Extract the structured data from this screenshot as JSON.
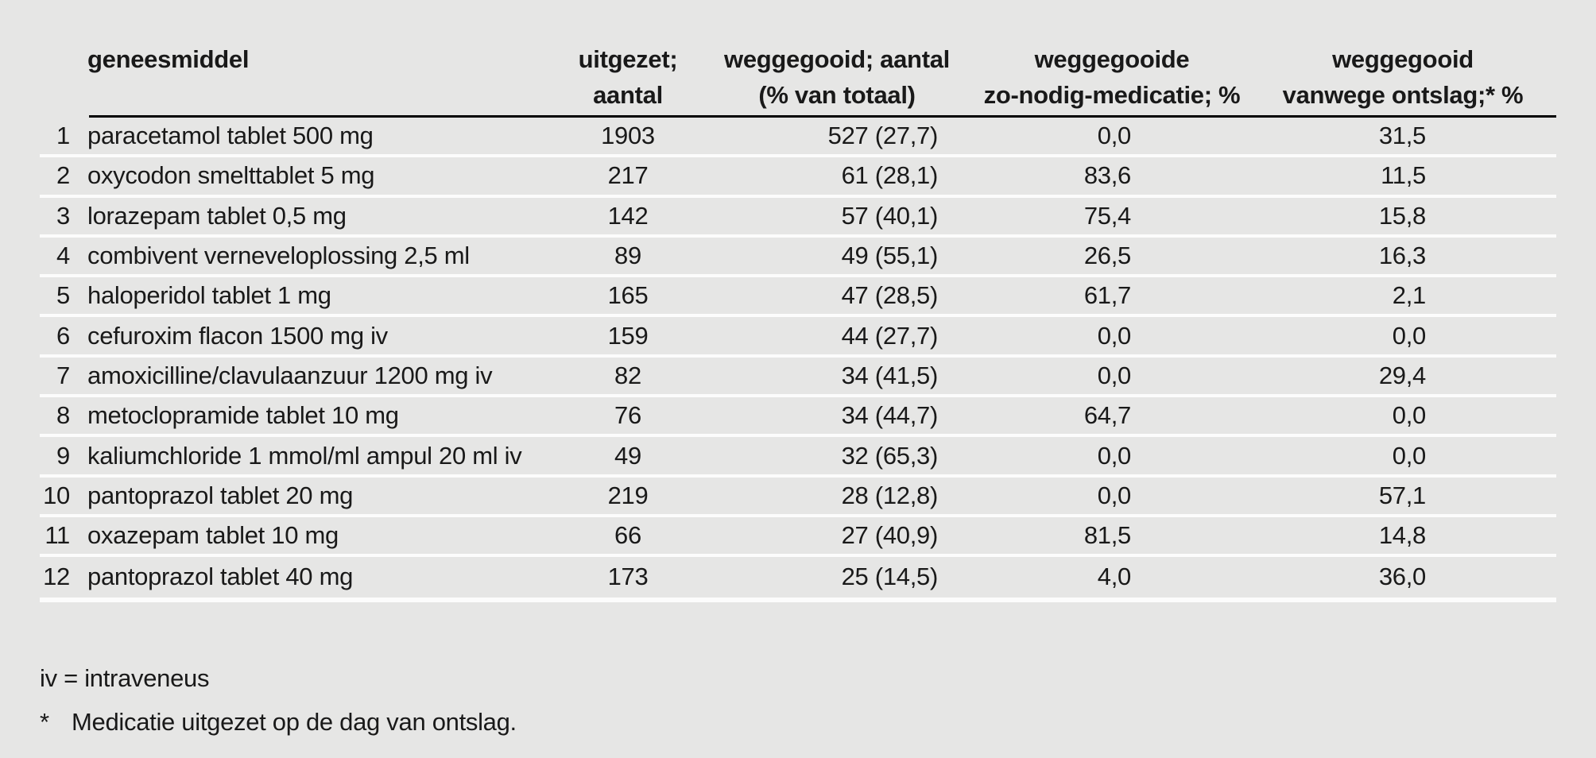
{
  "table": {
    "headers": {
      "geneesmiddel": "geneesmiddel",
      "uitgezet": [
        "uitgezet;",
        "aantal"
      ],
      "weggegooid": [
        "weggegooid; aantal",
        "(% van totaal)"
      ],
      "zonodig": [
        "weggegooide",
        "zo-nodig-medicatie; %"
      ],
      "ontslag": [
        "weggegooid",
        "vanwege ontslag;* %"
      ]
    },
    "rows": [
      {
        "num": "1",
        "name": "paracetamol tablet 500 mg",
        "uitgezet": "1903",
        "weggegooid": "527 (27,7)",
        "zonodig": "0,0",
        "ontslag": "31,5"
      },
      {
        "num": "2",
        "name": "oxycodon smelttablet 5 mg",
        "uitgezet": "217",
        "weggegooid": "61 (28,1)",
        "zonodig": "83,6",
        "ontslag": "11,5"
      },
      {
        "num": "3",
        "name": "lorazepam tablet 0,5 mg",
        "uitgezet": "142",
        "weggegooid": "57 (40,1)",
        "zonodig": "75,4",
        "ontslag": "15,8"
      },
      {
        "num": "4",
        "name": "combivent verneveloplossing 2,5 ml",
        "uitgezet": "89",
        "weggegooid": "49 (55,1)",
        "zonodig": "26,5",
        "ontslag": "16,3"
      },
      {
        "num": "5",
        "name": "haloperidol tablet 1 mg",
        "uitgezet": "165",
        "weggegooid": "47 (28,5)",
        "zonodig": "61,7",
        "ontslag": "2,1"
      },
      {
        "num": "6",
        "name": "cefuroxim flacon 1500 mg iv",
        "uitgezet": "159",
        "weggegooid": "44 (27,7)",
        "zonodig": "0,0",
        "ontslag": "0,0"
      },
      {
        "num": "7",
        "name": "amoxicilline/clavulaanzuur 1200 mg iv",
        "uitgezet": "82",
        "weggegooid": "34 (41,5)",
        "zonodig": "0,0",
        "ontslag": "29,4"
      },
      {
        "num": "8",
        "name": "metoclopramide tablet 10 mg",
        "uitgezet": "76",
        "weggegooid": "34 (44,7)",
        "zonodig": "64,7",
        "ontslag": "0,0"
      },
      {
        "num": "9",
        "name": "kaliumchloride 1 mmol/ml ampul 20 ml iv",
        "uitgezet": "49",
        "weggegooid": "32 (65,3)",
        "zonodig": "0,0",
        "ontslag": "0,0"
      },
      {
        "num": "10",
        "name": "pantoprazol tablet 20 mg",
        "uitgezet": "219",
        "weggegooid": "28 (12,8)",
        "zonodig": "0,0",
        "ontslag": "57,1"
      },
      {
        "num": "11",
        "name": "oxazepam tablet 10 mg",
        "uitgezet": "66",
        "weggegooid": "27 (40,9)",
        "zonodig": "81,5",
        "ontslag": "14,8"
      },
      {
        "num": "12",
        "name": "pantoprazol tablet 40 mg",
        "uitgezet": "173",
        "weggegooid": "25 (14,5)",
        "zonodig": "4,0",
        "ontslag": "36,0"
      }
    ],
    "footnotes": {
      "iv_note": "iv = intraveneus",
      "asterisk_marker": "*",
      "asterisk_note": "Medicatie uitgezet op de dag van ontslag."
    }
  },
  "colors": {
    "background": "#e6e6e5",
    "row_separator": "#fcfcfc",
    "header_rule": "#000000",
    "text": "#191919"
  },
  "chart_data": {
    "type": "table",
    "columns": [
      "",
      "geneesmiddel",
      "uitgezet; aantal",
      "weggegooid; aantal (% van totaal)",
      "weggegooide zo-nodig-medicatie; %",
      "weggegooid vanwege ontslag;* %"
    ],
    "rows": [
      [
        "1",
        "paracetamol tablet 500 mg",
        "1903",
        "527 (27,7)",
        "0,0",
        "31,5"
      ],
      [
        "2",
        "oxycodon smelttablet 5 mg",
        "217",
        "61 (28,1)",
        "83,6",
        "11,5"
      ],
      [
        "3",
        "lorazepam tablet 0,5 mg",
        "142",
        "57 (40,1)",
        "75,4",
        "15,8"
      ],
      [
        "4",
        "combivent verneveloplossing 2,5 ml",
        "89",
        "49 (55,1)",
        "26,5",
        "16,3"
      ],
      [
        "5",
        "haloperidol tablet 1 mg",
        "165",
        "47 (28,5)",
        "61,7",
        "2,1"
      ],
      [
        "6",
        "cefuroxim flacon 1500 mg iv",
        "159",
        "44 (27,7)",
        "0,0",
        "0,0"
      ],
      [
        "7",
        "amoxicilline/clavulaanzuur 1200 mg iv",
        "82",
        "34 (41,5)",
        "0,0",
        "29,4"
      ],
      [
        "8",
        "metoclopramide tablet 10 mg",
        "76",
        "34 (44,7)",
        "64,7",
        "0,0"
      ],
      [
        "9",
        "kaliumchloride 1 mmol/ml ampul 20 ml iv",
        "49",
        "32 (65,3)",
        "0,0",
        "0,0"
      ],
      [
        "10",
        "pantoprazol tablet 20 mg",
        "219",
        "28 (12,8)",
        "0,0",
        "57,1"
      ],
      [
        "11",
        "oxazepam tablet 10 mg",
        "66",
        "27 (40,9)",
        "81,5",
        "14,8"
      ],
      [
        "12",
        "pantoprazol tablet 40 mg",
        "173",
        "25 (14,5)",
        "4,0",
        "36,0"
      ]
    ],
    "footnotes": [
      "iv = intraveneus",
      "* Medicatie uitgezet op de dag van ontslag."
    ]
  }
}
